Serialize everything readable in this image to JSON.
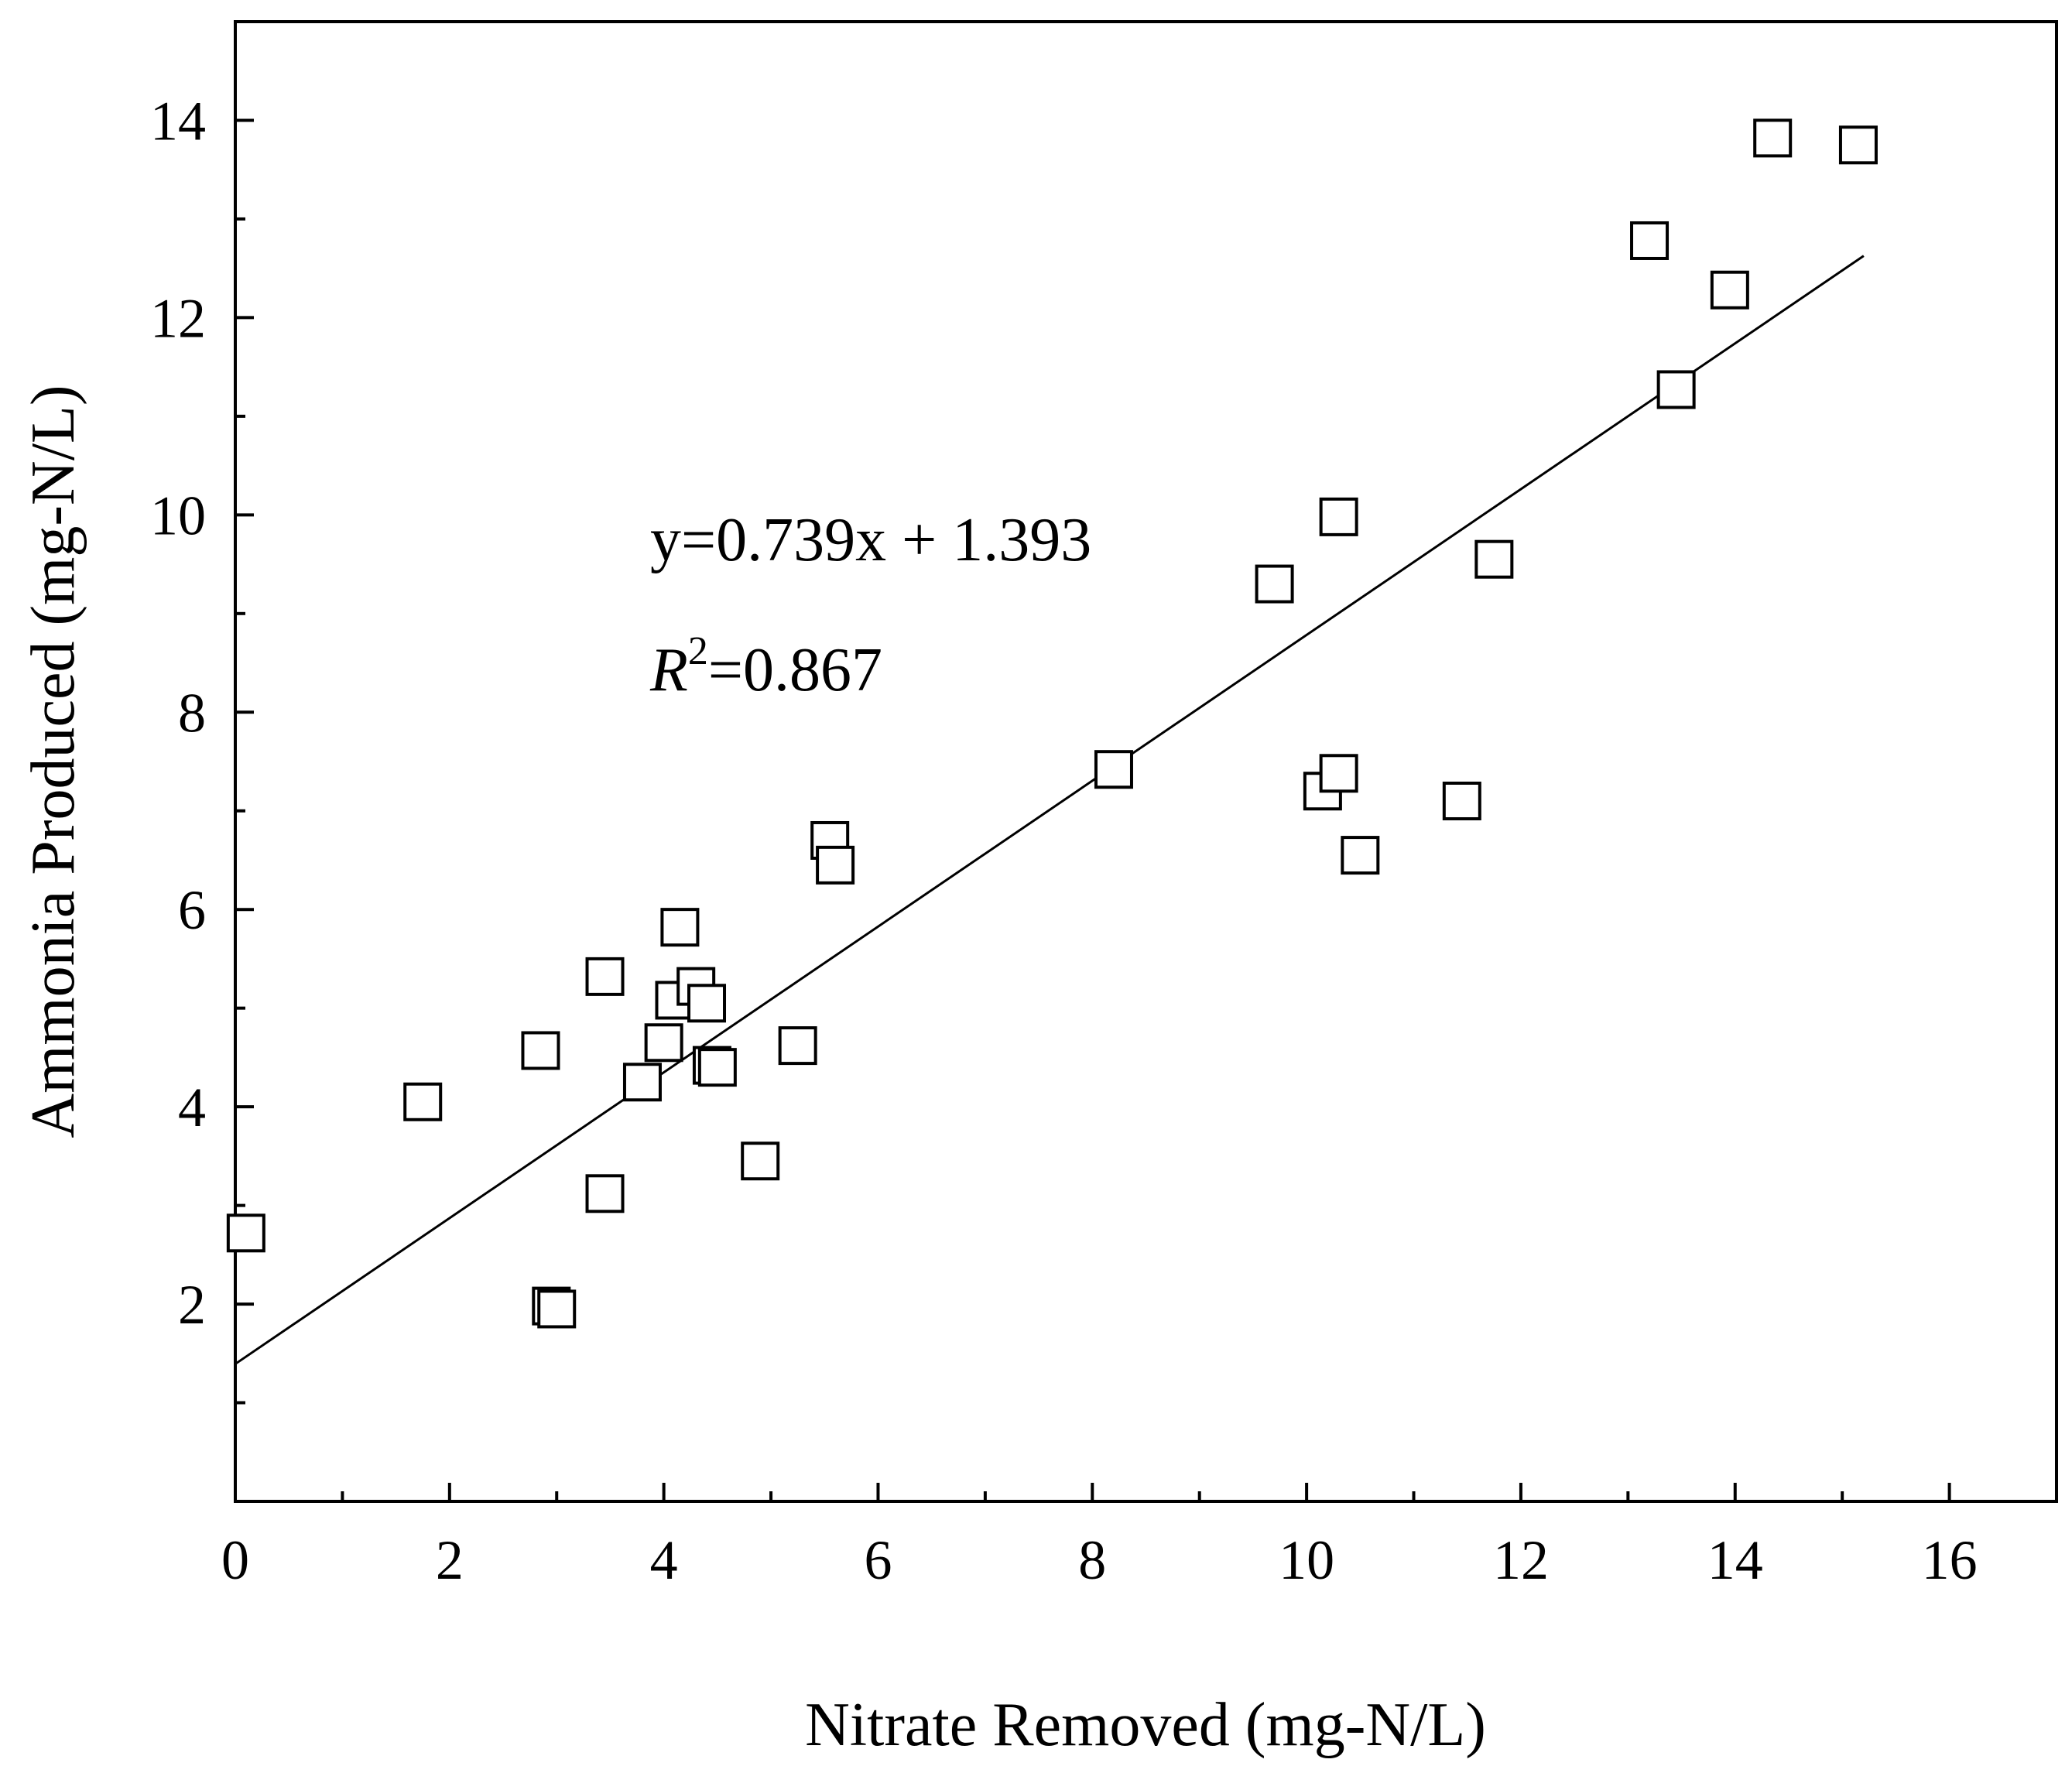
{
  "chart_data": {
    "type": "scatter",
    "xlabel": "Nitrate Removed (mg-N/L)",
    "ylabel": "Ammonia Produced (mg-N/L)",
    "xlim": [
      0,
      17
    ],
    "ylim": [
      0,
      15
    ],
    "x_ticks": [
      0,
      2,
      4,
      6,
      8,
      10,
      12,
      14,
      16
    ],
    "y_ticks": [
      2,
      4,
      6,
      8,
      10,
      12,
      14
    ],
    "x_minor_step": 1,
    "y_minor_step": 1,
    "grid": false,
    "marker": "open-square",
    "points": [
      {
        "x": 0.1,
        "y": 2.72
      },
      {
        "x": 1.75,
        "y": 4.05
      },
      {
        "x": 2.85,
        "y": 4.57
      },
      {
        "x": 2.95,
        "y": 1.98
      },
      {
        "x": 3.0,
        "y": 1.95
      },
      {
        "x": 3.45,
        "y": 5.32
      },
      {
        "x": 3.45,
        "y": 3.12
      },
      {
        "x": 3.8,
        "y": 4.25
      },
      {
        "x": 4.0,
        "y": 4.65
      },
      {
        "x": 4.1,
        "y": 5.08
      },
      {
        "x": 4.15,
        "y": 5.82
      },
      {
        "x": 4.3,
        "y": 5.22
      },
      {
        "x": 4.4,
        "y": 5.05
      },
      {
        "x": 4.45,
        "y": 4.42
      },
      {
        "x": 4.5,
        "y": 4.4
      },
      {
        "x": 4.9,
        "y": 3.45
      },
      {
        "x": 5.25,
        "y": 4.62
      },
      {
        "x": 5.55,
        "y": 6.7
      },
      {
        "x": 5.6,
        "y": 6.45
      },
      {
        "x": 8.2,
        "y": 7.42
      },
      {
        "x": 9.7,
        "y": 9.3
      },
      {
        "x": 10.15,
        "y": 7.2
      },
      {
        "x": 10.3,
        "y": 9.98
      },
      {
        "x": 10.3,
        "y": 7.38
      },
      {
        "x": 10.5,
        "y": 6.55
      },
      {
        "x": 11.45,
        "y": 7.1
      },
      {
        "x": 11.75,
        "y": 9.55
      },
      {
        "x": 13.2,
        "y": 12.78
      },
      {
        "x": 13.45,
        "y": 11.27
      },
      {
        "x": 13.95,
        "y": 12.28
      },
      {
        "x": 14.35,
        "y": 13.82
      },
      {
        "x": 15.15,
        "y": 13.75
      }
    ],
    "fit": {
      "slope": 0.739,
      "intercept": 1.393,
      "x_range": [
        0,
        15.2
      ]
    },
    "annotations": {
      "equation": "y=0.739x + 1.393",
      "r_squared_symbol": "R",
      "r_squared_exponent": "2",
      "r_squared_value": "=0.867"
    }
  }
}
